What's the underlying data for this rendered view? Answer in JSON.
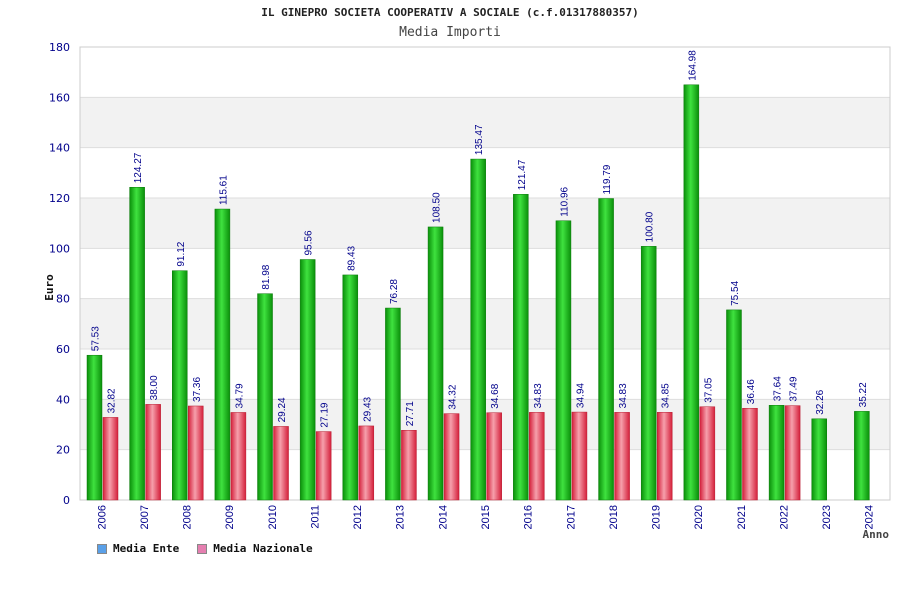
{
  "header": {
    "title": "IL GINEPRO SOCIETA COOPERATIV A SOCIALE (c.f.01317880357)",
    "subtitle": "Media Importi"
  },
  "legend": {
    "ente_label": "Media Ente",
    "nazionale_label": "Media Nazionale",
    "ente_swatch_color": "#5aa0e8",
    "nazionale_swatch_color": "#e57fb0"
  },
  "colors": {
    "ente": "#1fb21f",
    "nazionale": "#e8364a",
    "grid_band": "#f2f2f2",
    "axis_text": "#00008b"
  },
  "chart_data": {
    "type": "bar",
    "xlabel": "Anno",
    "ylabel": "Euro",
    "ylim": [
      0,
      180
    ],
    "yticks": [
      0,
      20,
      40,
      60,
      80,
      100,
      120,
      140,
      160,
      180
    ],
    "grid": true,
    "categories": [
      "2006",
      "2007",
      "2008",
      "2009",
      "2010",
      "2011",
      "2012",
      "2013",
      "2014",
      "2015",
      "2016",
      "2017",
      "2018",
      "2019",
      "2020",
      "2021",
      "2022",
      "2023",
      "2024"
    ],
    "series": [
      {
        "name": "Media Ente",
        "values": [
          57.53,
          124.27,
          91.12,
          115.61,
          81.98,
          95.56,
          89.43,
          76.28,
          108.5,
          135.47,
          121.47,
          110.96,
          119.79,
          100.8,
          164.98,
          75.54,
          37.64,
          32.26,
          35.22
        ],
        "labels": [
          "57.53",
          "124.27",
          "91.12",
          "115.61",
          "81.98",
          "95.56",
          "89.43",
          "76.28",
          "108.50",
          "135.47",
          "121.47",
          "110.96",
          "119.79",
          "100.80",
          "164.98",
          "75.54",
          "37.64",
          "32.26",
          "35.22"
        ]
      },
      {
        "name": "Media Nazionale",
        "values": [
          32.82,
          38.0,
          37.36,
          34.79,
          29.24,
          27.19,
          29.43,
          27.71,
          34.32,
          34.68,
          34.83,
          34.94,
          34.83,
          34.85,
          37.05,
          36.46,
          37.49,
          null,
          null
        ],
        "labels": [
          "32.82",
          "38.00",
          "37.36",
          "34.79",
          "29.24",
          "27.19",
          "29.43",
          "27.71",
          "34.32",
          "34.68",
          "34.83",
          "34.94",
          "34.83",
          "34.85",
          "37.05",
          "36.46",
          "37.49",
          "",
          ""
        ]
      }
    ]
  }
}
